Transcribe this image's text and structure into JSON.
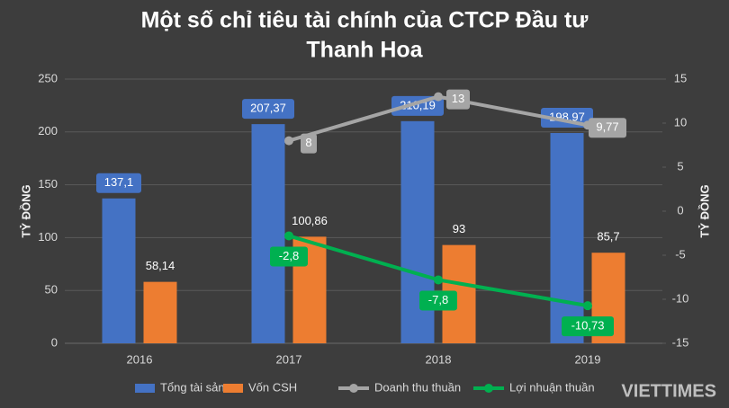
{
  "chart_data": {
    "type": "bar-line",
    "title": [
      "Một số chỉ tiêu tài chính của CTCP Đầu tư",
      "Thanh Hoa"
    ],
    "y_label": "TỶ ĐỒNG",
    "y2_label": "TỶ ĐỒNG",
    "categories": [
      "2016",
      "2017",
      "2018",
      "2019"
    ],
    "series": [
      {
        "name": "Tổng tài sản",
        "type": "bar",
        "color": "#4472c4",
        "values": [
          137.1,
          207.37,
          210.19,
          198.97
        ],
        "value_labels": [
          "137,1",
          "207,37",
          "210,19",
          "198,97"
        ]
      },
      {
        "name": "Vốn CSH",
        "type": "bar",
        "color": "#ed7d31",
        "values": [
          58.14,
          100.86,
          93,
          85.7
        ],
        "value_labels": [
          "58,14",
          "100,86",
          "93",
          "85,7"
        ]
      },
      {
        "name": "Doanh thu thuần",
        "type": "line",
        "axis": "y2",
        "color": "#a5a5a5",
        "values": [
          null,
          8,
          13,
          9.77
        ],
        "value_labels": [
          null,
          "8",
          "13",
          "9,77"
        ]
      },
      {
        "name": "Lợi nhuận thuần",
        "type": "line",
        "axis": "y2",
        "color": "#00b050",
        "values": [
          null,
          -2.8,
          -7.8,
          -10.73
        ],
        "value_labels": [
          null,
          "-2,8",
          "-7,8",
          "-10,73"
        ]
      }
    ],
    "ylim": [
      0,
      250
    ],
    "yticks": [
      0,
      50,
      100,
      150,
      200,
      250
    ],
    "y2lim": [
      -15,
      15
    ],
    "y2ticks": [
      -15,
      -10,
      -5,
      0,
      5,
      10,
      15
    ],
    "grid": true,
    "legend": "bottom",
    "watermark": "VIETTIMES"
  }
}
